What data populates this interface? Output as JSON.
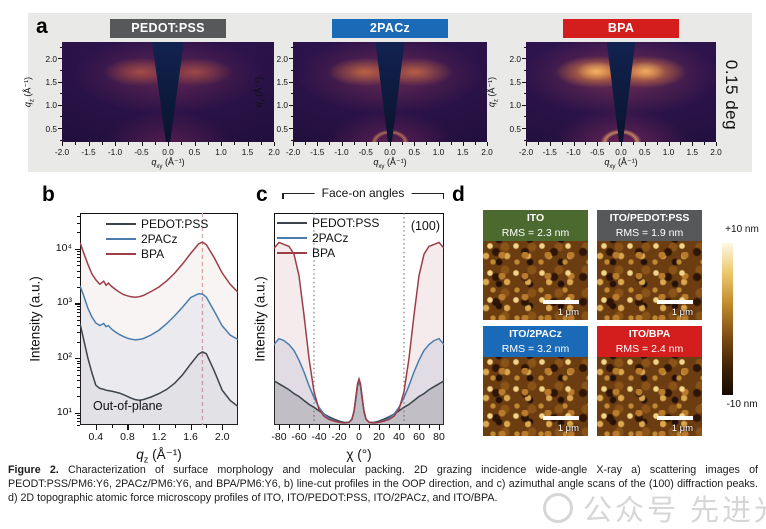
{
  "panel_a": {
    "label": "a",
    "rotated_note": "0.15 deg",
    "xlabel_base": "q",
    "xlabel_sub": "xy",
    "xlabel_unit": " (Å⁻¹)",
    "ylabel_base": "q",
    "ylabel_sub": "z",
    "ylabel_unit": " (Å⁻¹)",
    "x_tick_values": [
      -2.0,
      -1.5,
      -1.0,
      -0.5,
      0.0,
      0.5,
      1.0,
      1.5,
      2.0
    ],
    "x_tick_labels": [
      "-2.0",
      "-1.5",
      "-1.0",
      "-0.5",
      "0.0",
      "0.5",
      "1.0",
      "1.5",
      "2.0"
    ],
    "y_tick_values": [
      2.0,
      1.5,
      1.0,
      0.5
    ],
    "y_tick_labels": [
      "2.0",
      "1.5",
      "1.0",
      "0.5"
    ],
    "panels": [
      {
        "title": "PEDOT:PSS",
        "title_bg": "#57585a",
        "variant": "gx-pedot"
      },
      {
        "title": "2PACz",
        "title_bg": "#1a6ab8",
        "variant": "gx-pacz"
      },
      {
        "title": "BPA",
        "title_bg": "#d41d1d",
        "variant": "gx-bpa"
      }
    ]
  },
  "panel_b": {
    "label": "b",
    "ylabel": "Intensity (a.u.)",
    "xlabel_base": "q",
    "xlabel_sub": "z",
    "xlabel_unit": " (Å⁻¹)",
    "annotation": "Out-of-plane"
  },
  "panel_c": {
    "label": "c",
    "ylabel": "Intensity (a.u.)",
    "xlabel": "χ (°)",
    "bracket_label": "Face-on angles",
    "annotation": "(100)"
  },
  "panel_d": {
    "label": "d",
    "images": [
      {
        "title": "ITO",
        "rms": "RMS = 2.3 nm",
        "bg": "#4c6a2f",
        "scale_label": "1 μm"
      },
      {
        "title": "ITO/PEDOT:PSS",
        "rms": "RMS = 1.9 nm",
        "bg": "#57585a",
        "scale_label": "1 μm"
      },
      {
        "title": "ITO/2PACz",
        "rms": "RMS = 3.2 nm",
        "bg": "#1a6ab8",
        "scale_label": "1 μm"
      },
      {
        "title": "ITO/BPA",
        "rms": "RMS = 2.4 nm",
        "bg": "#d41d1d",
        "scale_label": "1 μm"
      }
    ],
    "colorbar": {
      "top": "+10 nm",
      "bottom": "-10 nm"
    }
  },
  "caption": {
    "prefix": "Figure 2.",
    "text": "Characterization of surface morphology and molecular packing. 2D grazing incidence wide-angle X-ray a) scattering images of PEODT:PSS/PM6:Y6, 2PACz/PM6:Y6, and BPA/PM6:Y6, b) line-cut profiles in the OOP direction, and c) azimuthal angle scans of the (100) diffraction peaks. d) 2D topographic atomic force microscopy profiles of ITO, ITO/PEDOT:PSS, ITO/2PACz, and ITO/BPA."
  },
  "watermark": {
    "text": "公众号  先进光伏"
  },
  "colors": {
    "pedot": "#3d434b",
    "pacz": "#4a7dad",
    "bpa": "#9c3e48",
    "peak_line": "#dbaaaa",
    "dotted_line": "#666666"
  },
  "chart_data": [
    {
      "id": "chart-b",
      "type": "line",
      "title": "",
      "xlabel": "q_z (Å⁻¹)",
      "ylabel": "Intensity (a.u.)",
      "x_scale": "linear",
      "y_scale": "log",
      "xlim": [
        0.2,
        2.2
      ],
      "ylim": [
        6,
        45000
      ],
      "grid": false,
      "legend_position": "top-inside",
      "x_ticks": [
        0.4,
        0.8,
        1.2,
        1.6,
        2.0
      ],
      "x_tick_labels": [
        "0.4",
        "0.8",
        "1.2",
        "1.6",
        "2.0"
      ],
      "y_ticks": [
        10000,
        1000,
        100,
        10
      ],
      "y_tick_labels": [
        "10⁴",
        "10³",
        "10²",
        "10¹"
      ],
      "vlines": [
        {
          "x": 1.75,
          "style": "dashed"
        }
      ],
      "x": [
        0.2,
        0.25,
        0.3,
        0.35,
        0.4,
        0.45,
        0.5,
        0.53,
        0.56,
        0.6,
        0.65,
        0.7,
        0.75,
        0.8,
        0.85,
        0.9,
        0.95,
        1.0,
        1.1,
        1.2,
        1.3,
        1.4,
        1.5,
        1.6,
        1.7,
        1.75,
        1.8,
        1.9,
        2.0,
        2.1,
        2.2
      ],
      "series": [
        {
          "name": "PEDOT:PSS",
          "color_key": "pedot",
          "fill_opacity": 0.05,
          "values": [
            430,
            210,
            100,
            55,
            32,
            28,
            27,
            26,
            25.5,
            25,
            24,
            23,
            21.5,
            20,
            18.5,
            17.5,
            17,
            17.5,
            19.5,
            22.5,
            27,
            35,
            50,
            78,
            118,
            130,
            120,
            58,
            26,
            17,
            13
          ]
        },
        {
          "name": "2PACz",
          "color_key": "pacz",
          "fill_opacity": 0.08,
          "values": [
            2100,
            1350,
            820,
            570,
            440,
            395,
            430,
            375,
            395,
            340,
            300,
            270,
            248,
            232,
            222,
            216,
            220,
            228,
            265,
            325,
            430,
            600,
            860,
            1280,
            1500,
            1490,
            1300,
            720,
            390,
            265,
            218
          ]
        },
        {
          "name": "BPA",
          "color_key": "bpa",
          "fill_opacity": 0.06,
          "values": [
            13000,
            8200,
            5200,
            3500,
            2700,
            2250,
            2550,
            2150,
            2350,
            2050,
            1800,
            1600,
            1450,
            1380,
            1320,
            1300,
            1330,
            1400,
            1650,
            2000,
            2600,
            3600,
            5300,
            8200,
            12200,
            13200,
            11800,
            6800,
            3600,
            2250,
            1600
          ]
        }
      ]
    },
    {
      "id": "chart-c",
      "type": "line",
      "title": "",
      "xlabel": "χ (°)",
      "ylabel": "Intensity (a.u.)",
      "x_scale": "linear",
      "y_scale": "linear",
      "xlim": [
        -85,
        85
      ],
      "ylim": [
        0,
        1.08
      ],
      "grid": false,
      "legend_position": "top-left-inside",
      "x_ticks": [
        -80,
        -60,
        -40,
        -20,
        0,
        20,
        40,
        60,
        80
      ],
      "x_tick_labels": [
        "-80",
        "-60",
        "-40",
        "-20",
        "0",
        "20",
        "40",
        "60",
        "80"
      ],
      "y_ticks": [],
      "y_tick_labels": [],
      "vlines": [
        {
          "x": -45,
          "style": "dotted"
        },
        {
          "x": 45,
          "style": "dotted"
        }
      ],
      "x": [
        -85,
        -80,
        -75,
        -70,
        -65,
        -60,
        -55,
        -50,
        -45,
        -40,
        -35,
        -30,
        -25,
        -20,
        -15,
        -10,
        -7,
        -5,
        -3,
        -1.5,
        0,
        1.5,
        3,
        5,
        7,
        10,
        15,
        20,
        25,
        30,
        35,
        40,
        45,
        50,
        55,
        60,
        65,
        70,
        75,
        80,
        85
      ],
      "series": [
        {
          "name": "PEDOT:PSS",
          "color_key": "pedot",
          "fill_opacity": 0.2,
          "values": [
            0.225,
            0.21,
            0.195,
            0.18,
            0.16,
            0.145,
            0.125,
            0.105,
            0.09,
            0.072,
            0.056,
            0.042,
            0.03,
            0.02,
            0.013,
            0.014,
            0.03,
            0.07,
            0.14,
            0.2,
            0.22,
            0.2,
            0.14,
            0.07,
            0.03,
            0.014,
            0.013,
            0.02,
            0.03,
            0.042,
            0.056,
            0.072,
            0.09,
            0.105,
            0.125,
            0.145,
            0.16,
            0.18,
            0.195,
            0.21,
            0.225
          ]
        },
        {
          "name": "2PACz",
          "color_key": "pacz",
          "fill_opacity": 0.12,
          "values": [
            0.41,
            0.44,
            0.43,
            0.41,
            0.38,
            0.33,
            0.27,
            0.2,
            0.14,
            0.09,
            0.055,
            0.035,
            0.022,
            0.015,
            0.011,
            0.014,
            0.03,
            0.07,
            0.14,
            0.2,
            0.225,
            0.2,
            0.14,
            0.07,
            0.03,
            0.014,
            0.011,
            0.015,
            0.022,
            0.035,
            0.055,
            0.09,
            0.14,
            0.2,
            0.27,
            0.33,
            0.38,
            0.41,
            0.43,
            0.44,
            0.41
          ]
        },
        {
          "name": "BPA",
          "color_key": "bpa",
          "fill_opacity": 0.1,
          "values": [
            0.9,
            0.93,
            0.92,
            0.91,
            0.87,
            0.76,
            0.56,
            0.34,
            0.17,
            0.08,
            0.045,
            0.028,
            0.02,
            0.014,
            0.01,
            0.013,
            0.03,
            0.07,
            0.15,
            0.21,
            0.235,
            0.21,
            0.15,
            0.07,
            0.03,
            0.013,
            0.01,
            0.014,
            0.02,
            0.028,
            0.045,
            0.08,
            0.17,
            0.34,
            0.56,
            0.76,
            0.87,
            0.91,
            0.92,
            0.93,
            0.9
          ]
        }
      ]
    }
  ]
}
